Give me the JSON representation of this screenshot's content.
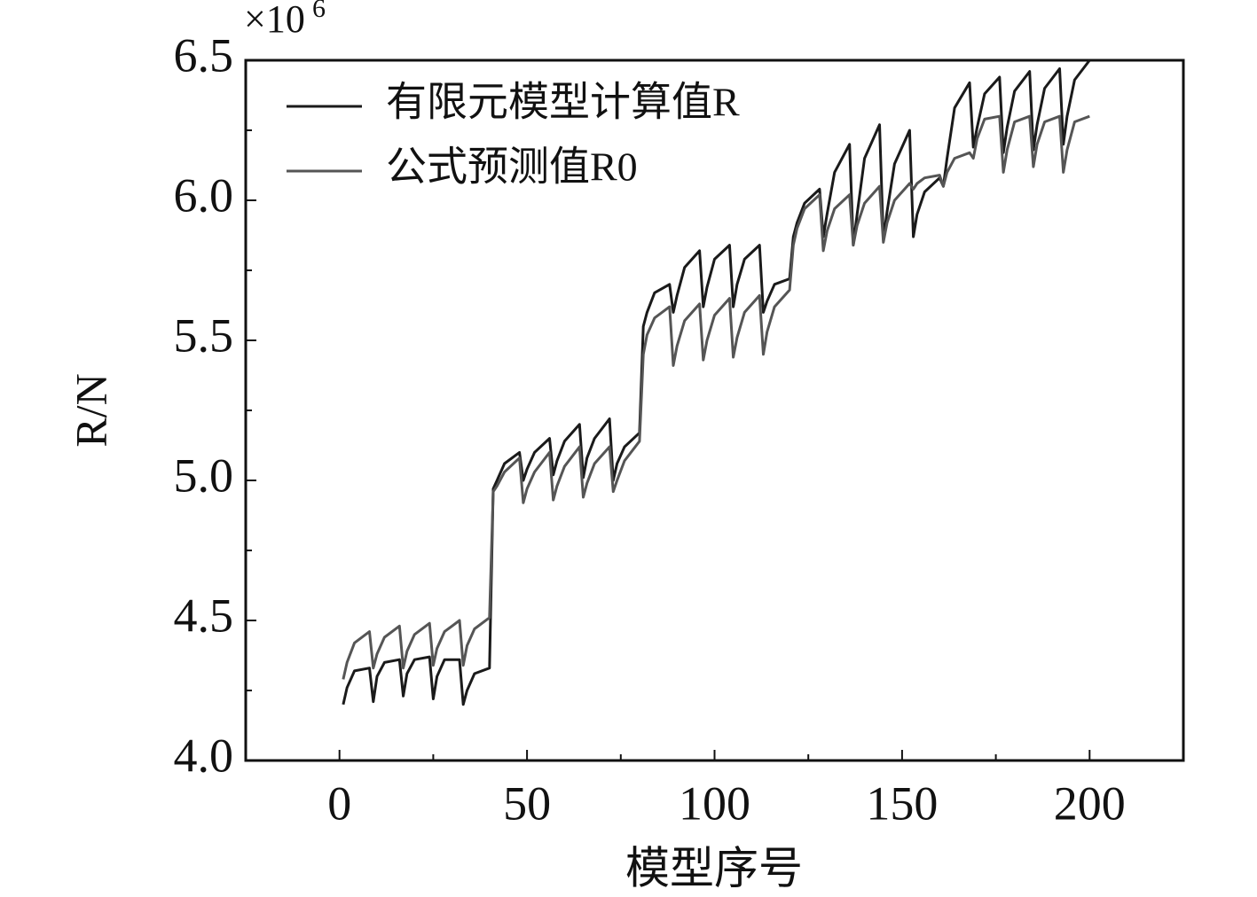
{
  "chart_data": {
    "type": "line",
    "x_label": "模型序号",
    "y_label": "R/N",
    "y_multiplier": "×10",
    "y_multiplier_exp": "6",
    "x": [
      1,
      2,
      4,
      8,
      9,
      10,
      12,
      16,
      17,
      18,
      20,
      24,
      25,
      26,
      28,
      32,
      33,
      34,
      36,
      40,
      41,
      42,
      44,
      48,
      49,
      50,
      52,
      56,
      57,
      58,
      60,
      64,
      65,
      66,
      68,
      72,
      73,
      74,
      76,
      80,
      81,
      82,
      84,
      88,
      89,
      90,
      92,
      96,
      97,
      98,
      100,
      104,
      105,
      106,
      108,
      112,
      113,
      114,
      116,
      120,
      121,
      122,
      124,
      128,
      129,
      130,
      132,
      136,
      137,
      138,
      140,
      144,
      145,
      146,
      148,
      152,
      153,
      154,
      156,
      160,
      161,
      162,
      164,
      168,
      169,
      170,
      172,
      176,
      177,
      178,
      180,
      184,
      185,
      186,
      188,
      192,
      193,
      194,
      196,
      200
    ],
    "series": [
      {
        "name": "有限元模型计算值R",
        "color": "#1a1a1a",
        "values": [
          4.2,
          4.26,
          4.32,
          4.33,
          4.21,
          4.3,
          4.35,
          4.36,
          4.23,
          4.31,
          4.36,
          4.37,
          4.22,
          4.3,
          4.36,
          4.36,
          4.2,
          4.25,
          4.31,
          4.33,
          4.97,
          5.0,
          5.06,
          5.1,
          5.0,
          5.04,
          5.1,
          5.15,
          5.02,
          5.07,
          5.14,
          5.2,
          5.01,
          5.08,
          5.15,
          5.22,
          5.0,
          5.06,
          5.12,
          5.17,
          5.55,
          5.6,
          5.67,
          5.7,
          5.6,
          5.66,
          5.76,
          5.82,
          5.62,
          5.69,
          5.79,
          5.84,
          5.62,
          5.7,
          5.79,
          5.84,
          5.6,
          5.64,
          5.7,
          5.72,
          5.87,
          5.92,
          5.99,
          6.04,
          5.87,
          5.95,
          6.1,
          6.2,
          5.84,
          5.95,
          6.15,
          6.27,
          5.86,
          5.96,
          6.13,
          6.25,
          5.87,
          5.95,
          6.03,
          6.08,
          6.05,
          6.15,
          6.33,
          6.42,
          6.19,
          6.26,
          6.38,
          6.44,
          6.17,
          6.26,
          6.39,
          6.46,
          6.18,
          6.27,
          6.4,
          6.47,
          6.2,
          6.3,
          6.43,
          6.5
        ]
      },
      {
        "name": "公式预测值R0",
        "color": "#555555",
        "values": [
          4.29,
          4.35,
          4.42,
          4.46,
          4.33,
          4.38,
          4.44,
          4.48,
          4.33,
          4.39,
          4.45,
          4.49,
          4.34,
          4.4,
          4.46,
          4.5,
          4.34,
          4.41,
          4.47,
          4.51,
          4.96,
          4.98,
          5.03,
          5.08,
          4.92,
          4.97,
          5.03,
          5.1,
          4.93,
          4.98,
          5.05,
          5.12,
          4.94,
          4.99,
          5.06,
          5.12,
          4.96,
          5.0,
          5.07,
          5.14,
          5.45,
          5.52,
          5.58,
          5.62,
          5.41,
          5.48,
          5.57,
          5.63,
          5.43,
          5.5,
          5.59,
          5.65,
          5.44,
          5.51,
          5.6,
          5.66,
          5.45,
          5.53,
          5.62,
          5.68,
          5.84,
          5.9,
          5.97,
          6.02,
          5.82,
          5.89,
          5.97,
          6.02,
          5.84,
          5.91,
          5.99,
          6.05,
          5.85,
          5.92,
          6.0,
          6.06,
          6.04,
          6.06,
          6.08,
          6.09,
          6.05,
          6.1,
          6.15,
          6.17,
          6.15,
          6.22,
          6.29,
          6.3,
          6.1,
          6.18,
          6.28,
          6.3,
          6.12,
          6.2,
          6.28,
          6.3,
          6.1,
          6.18,
          6.28,
          6.3
        ]
      }
    ],
    "xlim": [
      -25,
      225
    ],
    "xticks": [
      0,
      50,
      100,
      150,
      200
    ],
    "xminor_ticks": [
      25,
      75,
      125,
      175
    ],
    "ylim": [
      4.0,
      6.5
    ],
    "yticks": [
      {
        "value": 4.0,
        "label": "4.0"
      },
      {
        "value": 4.5,
        "label": "4.5"
      },
      {
        "value": 5.0,
        "label": "5.0"
      },
      {
        "value": 5.5,
        "label": "5.5"
      },
      {
        "value": 6.0,
        "label": "6.0"
      },
      {
        "value": 6.5,
        "label": "6.5"
      }
    ],
    "yminor_ticks": [
      4.25,
      4.75,
      5.25,
      5.75,
      6.25
    ],
    "legend": "upper-left"
  }
}
